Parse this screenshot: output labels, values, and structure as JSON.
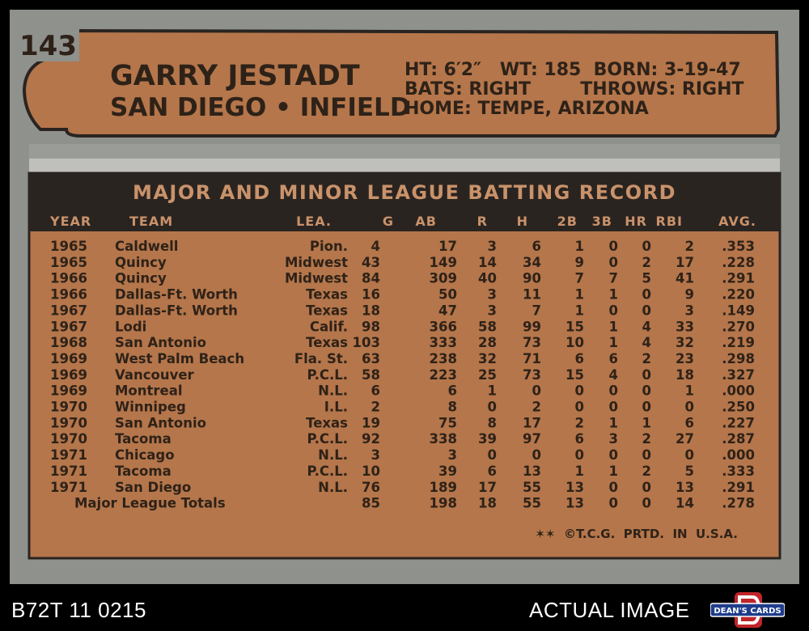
{
  "card": {
    "number": "143",
    "player_name": "GARRY JESTADT",
    "team_position": "SAN DIEGO • INFIELD",
    "bio_line1": "HT: 6′2″   WT: 185  BORN: 3-19-47",
    "bio_line2": "BATS: RIGHT        THROWS: RIGHT",
    "bio_line3": "HOME: TEMPE, ARIZONA",
    "banner": "MAJOR AND MINOR LEAGUE BATTING RECORD",
    "columns": [
      "YEAR",
      "TEAM",
      "LEA.",
      "G",
      "AB",
      "R",
      "H",
      "2B",
      "3B",
      "HR",
      "RBI",
      "AVG."
    ],
    "rows": [
      [
        "1965",
        "Caldwell",
        "Pion.",
        "4",
        "17",
        "3",
        "6",
        "1",
        "0",
        "0",
        "2",
        ".353"
      ],
      [
        "1965",
        "Quincy",
        "Midwest",
        "43",
        "149",
        "14",
        "34",
        "9",
        "0",
        "2",
        "17",
        ".228"
      ],
      [
        "1966",
        "Quincy",
        "Midwest",
        "84",
        "309",
        "40",
        "90",
        "7",
        "7",
        "5",
        "41",
        ".291"
      ],
      [
        "1966",
        "Dallas-Ft. Worth",
        "Texas",
        "16",
        "50",
        "3",
        "11",
        "1",
        "1",
        "0",
        "9",
        ".220"
      ],
      [
        "1967",
        "Dallas-Ft. Worth",
        "Texas",
        "18",
        "47",
        "3",
        "7",
        "1",
        "0",
        "0",
        "3",
        ".149"
      ],
      [
        "1967",
        "Lodi",
        "Calif.",
        "98",
        "366",
        "58",
        "99",
        "15",
        "1",
        "4",
        "33",
        ".270"
      ],
      [
        "1968",
        "San Antonio",
        "Texas",
        "103",
        "333",
        "28",
        "73",
        "10",
        "1",
        "4",
        "32",
        ".219"
      ],
      [
        "1969",
        "West Palm Beach",
        "Fla. St.",
        "63",
        "238",
        "32",
        "71",
        "6",
        "6",
        "2",
        "23",
        ".298"
      ],
      [
        "1969",
        "Vancouver",
        "P.C.L.",
        "58",
        "223",
        "25",
        "73",
        "15",
        "4",
        "0",
        "18",
        ".327"
      ],
      [
        "1969",
        "Montreal",
        "N.L.",
        "6",
        "6",
        "1",
        "0",
        "0",
        "0",
        "0",
        "1",
        ".000"
      ],
      [
        "1970",
        "Winnipeg",
        "I.L.",
        "2",
        "8",
        "0",
        "2",
        "0",
        "0",
        "0",
        "0",
        ".250"
      ],
      [
        "1970",
        "San Antonio",
        "Texas",
        "19",
        "75",
        "8",
        "17",
        "2",
        "1",
        "1",
        "6",
        ".227"
      ],
      [
        "1970",
        "Tacoma",
        "P.C.L.",
        "92",
        "338",
        "39",
        "97",
        "6",
        "3",
        "2",
        "27",
        ".287"
      ],
      [
        "1971",
        "Chicago",
        "N.L.",
        "3",
        "3",
        "0",
        "0",
        "0",
        "0",
        "0",
        "0",
        ".000"
      ],
      [
        "1971",
        "Tacoma",
        "P.C.L.",
        "10",
        "39",
        "6",
        "13",
        "1",
        "1",
        "2",
        "5",
        ".333"
      ],
      [
        "1971",
        "San Diego",
        "N.L.",
        "76",
        "189",
        "17",
        "55",
        "13",
        "0",
        "0",
        "13",
        ".291"
      ]
    ],
    "totals": [
      "Major League Totals",
      "85",
      "198",
      "18",
      "55",
      "13",
      "0",
      "0",
      "14",
      ".278"
    ],
    "copyright": "✶✶  ©T.C.G.  PRTD.  IN  U.S.A."
  },
  "footer": {
    "left": "B72T 11 0215",
    "right": "ACTUAL IMAGE",
    "logo_text": "DEAN'S CARDS"
  },
  "colors": {
    "card_border": "#8f918d",
    "copper": "#b5764b",
    "dark_band": "#2a2421",
    "ink": "#2e2218"
  }
}
